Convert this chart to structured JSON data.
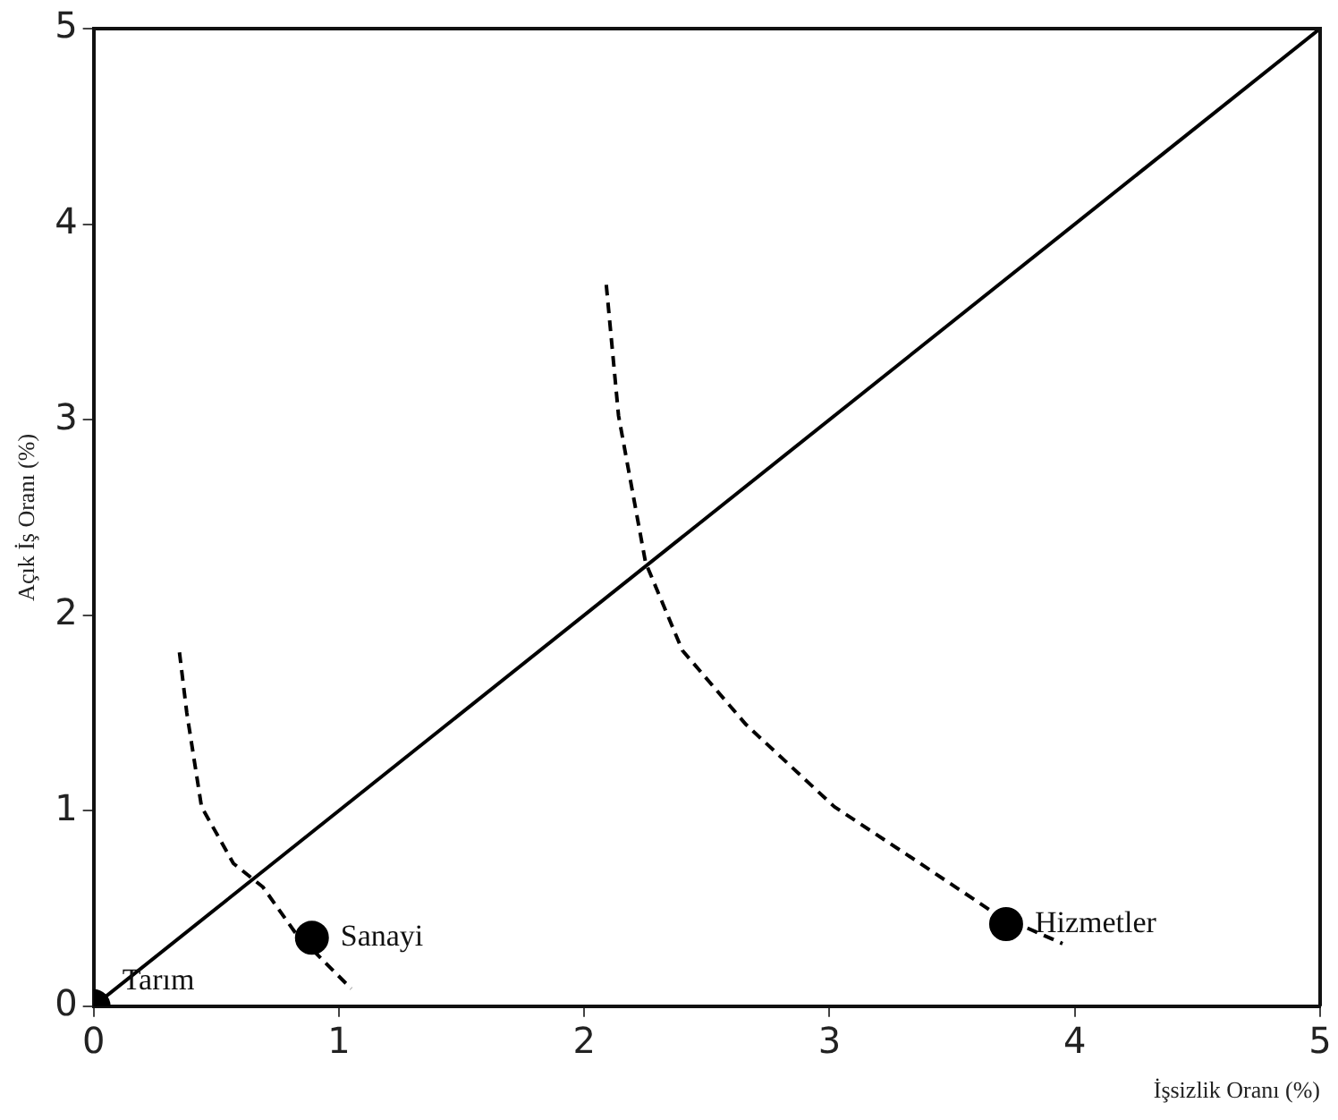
{
  "chart_data": {
    "type": "scatter",
    "xlabel": "İşsizlik Oranı (%)",
    "ylabel": "Açık İş Oranı (%)",
    "xlim": [
      0,
      5
    ],
    "ylim": [
      0,
      5
    ],
    "xticks": [
      0,
      1,
      2,
      3,
      4,
      5
    ],
    "yticks": [
      0,
      1,
      2,
      3,
      4,
      5
    ],
    "grid": false,
    "legend": false,
    "series": [
      {
        "type": "line",
        "color": "#000000",
        "line_style": "solid",
        "marker": "none",
        "x": [
          0,
          5
        ],
        "values": [
          0,
          5
        ]
      },
      {
        "type": "line",
        "color": "#000000",
        "line_style": "dashed",
        "marker": "none",
        "x": [
          0.35,
          0.38,
          0.44,
          0.57,
          0.69,
          0.82,
          1.05
        ],
        "values": [
          1.81,
          1.5,
          1.02,
          0.73,
          0.61,
          0.38,
          0.09
        ]
      },
      {
        "type": "line",
        "color": "#000000",
        "line_style": "dashed",
        "marker": "none",
        "x": [
          2.09,
          2.14,
          2.25,
          2.4,
          2.66,
          3.02,
          3.37,
          3.68,
          3.95
        ],
        "values": [
          3.69,
          3.02,
          2.27,
          1.82,
          1.44,
          1.02,
          0.73,
          0.47,
          0.32
        ]
      },
      {
        "color": "#000000",
        "marker": "circle",
        "x": [
          0,
          0.89,
          3.72
        ],
        "values": [
          0,
          0.35,
          0.42
        ]
      }
    ],
    "annotations": [
      {
        "text": "Tarım",
        "x": 0,
        "y": 0
      },
      {
        "text": "Sanayi",
        "x": 0.89,
        "y": 0.35
      },
      {
        "text": "Hizmetler",
        "x": 3.72,
        "y": 0.42
      }
    ]
  }
}
